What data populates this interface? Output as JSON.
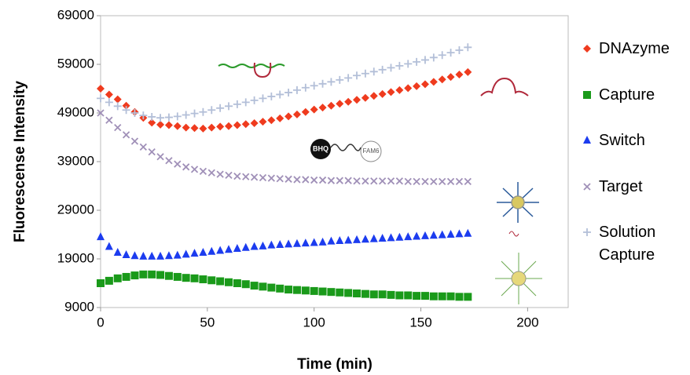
{
  "chart_data": {
    "type": "scatter",
    "y_label": "Fluorescense Intensity",
    "x_label": "Time (min)",
    "xlim": [
      0,
      219
    ],
    "xticks": [
      0,
      50,
      100,
      150,
      200
    ],
    "ylim": [
      9000,
      69000
    ],
    "yticks": [
      9000,
      19000,
      29000,
      39000,
      49000,
      59000,
      69000
    ],
    "annotations": [
      "BHQ",
      "FAM6"
    ],
    "x": [
      0,
      4,
      8,
      12,
      16,
      20,
      24,
      28,
      32,
      36,
      40,
      44,
      48,
      52,
      56,
      60,
      64,
      68,
      72,
      76,
      80,
      84,
      88,
      92,
      96,
      100,
      104,
      108,
      112,
      116,
      120,
      124,
      128,
      132,
      136,
      140,
      144,
      148,
      152,
      156,
      160,
      164,
      168,
      172
    ],
    "series": [
      {
        "name": "DNAzyme",
        "color": "#ef3b1e",
        "marker": "diamond",
        "values": [
          54000,
          52800,
          51800,
          50500,
          49200,
          48000,
          47000,
          46600,
          46500,
          46300,
          46000,
          45900,
          45800,
          46000,
          46200,
          46300,
          46500,
          46700,
          46900,
          47200,
          47500,
          47900,
          48300,
          48700,
          49200,
          49700,
          50100,
          50500,
          50900,
          51300,
          51700,
          52100,
          52500,
          52900,
          53300,
          53700,
          54100,
          54500,
          54900,
          55400,
          55900,
          56400,
          56900,
          57400
        ]
      },
      {
        "name": "Capture",
        "color": "#1a9a1a",
        "marker": "square",
        "values": [
          14000,
          14500,
          15000,
          15300,
          15600,
          15800,
          15800,
          15700,
          15500,
          15300,
          15100,
          15000,
          14800,
          14600,
          14400,
          14200,
          14000,
          13800,
          13500,
          13300,
          13100,
          12900,
          12700,
          12600,
          12500,
          12400,
          12300,
          12200,
          12100,
          12000,
          11900,
          11800,
          11700,
          11700,
          11600,
          11500,
          11500,
          11400,
          11400,
          11300,
          11300,
          11300,
          11200,
          11200
        ]
      },
      {
        "name": "Switch",
        "color": "#1c3cef",
        "marker": "triangle",
        "values": [
          23500,
          21500,
          20300,
          19800,
          19600,
          19500,
          19500,
          19500,
          19600,
          19700,
          19900,
          20100,
          20300,
          20500,
          20700,
          20900,
          21100,
          21300,
          21500,
          21600,
          21800,
          21900,
          22000,
          22100,
          22200,
          22300,
          22400,
          22600,
          22700,
          22800,
          22900,
          23000,
          23100,
          23200,
          23300,
          23400,
          23500,
          23600,
          23700,
          23800,
          23900,
          24000,
          24100,
          24200
        ]
      },
      {
        "name": "Target",
        "color": "#a090b8",
        "marker": "x",
        "values": [
          49000,
          47500,
          46000,
          44500,
          43200,
          42000,
          41000,
          40000,
          39200,
          38500,
          37900,
          37400,
          37000,
          36700,
          36400,
          36200,
          36000,
          35900,
          35800,
          35700,
          35600,
          35500,
          35400,
          35300,
          35300,
          35200,
          35200,
          35100,
          35100,
          35100,
          35000,
          35000,
          35000,
          35000,
          35000,
          35000,
          34900,
          34900,
          34900,
          34900,
          34900,
          34900,
          34900,
          34900
        ]
      },
      {
        "name": "Solution Capture",
        "color": "#b3bfd8",
        "marker": "plus",
        "values": [
          52000,
          51200,
          50400,
          49600,
          49000,
          48500,
          48200,
          48000,
          48100,
          48300,
          48600,
          48900,
          49200,
          49600,
          50000,
          50400,
          50800,
          51200,
          51600,
          52000,
          52400,
          52800,
          53200,
          53700,
          54200,
          54600,
          55000,
          55400,
          55800,
          56200,
          56700,
          57100,
          57500,
          57900,
          58300,
          58700,
          59100,
          59500,
          59900,
          60400,
          60900,
          61400,
          61900,
          62500
        ]
      }
    ]
  }
}
